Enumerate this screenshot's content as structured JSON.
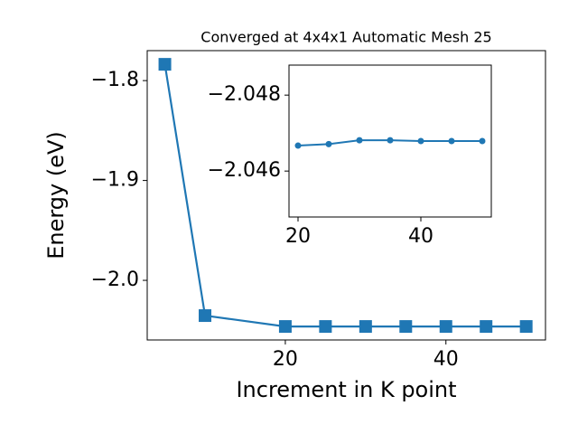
{
  "chart_data": [
    {
      "type": "line",
      "title": "Converged at 4x4x1 Automatic Mesh 25",
      "xlabel": "Increment in K point",
      "ylabel": "Energy (eV)",
      "x": [
        5,
        10,
        20,
        25,
        30,
        35,
        40,
        45,
        50
      ],
      "series": [
        {
          "color": "#1f77b4",
          "marker": "square",
          "values": [
            -1.7837,
            -2.0353,
            -2.0462,
            -2.0462,
            -2.0462,
            -2.0462,
            -2.0462,
            -2.0462,
            -2.0462
          ]
        }
      ],
      "xlim": [
        2.8,
        52.4
      ],
      "ylim": [
        -2.0597,
        -1.77
      ],
      "xticks": [
        20,
        40
      ],
      "yticks": [
        {
          "value": -2.0,
          "label": "−2.0"
        },
        {
          "value": -1.9,
          "label": "−1.9"
        },
        {
          "value": -1.8,
          "label": "−1.8"
        }
      ]
    },
    {
      "type": "line",
      "x": [
        20,
        25,
        30,
        35,
        40,
        45,
        50
      ],
      "series": [
        {
          "color": "#1f77b4",
          "marker": "circle",
          "values": [
            -2.04667,
            -2.04671,
            -2.04681,
            -2.04681,
            -2.04679,
            -2.04679,
            -2.04679
          ]
        }
      ],
      "xlim": [
        18.53,
        51.47
      ],
      "ylim": [
        -2.04479,
        -2.04879
      ],
      "xticks": [
        20,
        40
      ],
      "yticks": [
        {
          "value": -2.046,
          "label": "−2.046"
        },
        {
          "value": -2.048,
          "label": "−2.048"
        }
      ]
    }
  ]
}
